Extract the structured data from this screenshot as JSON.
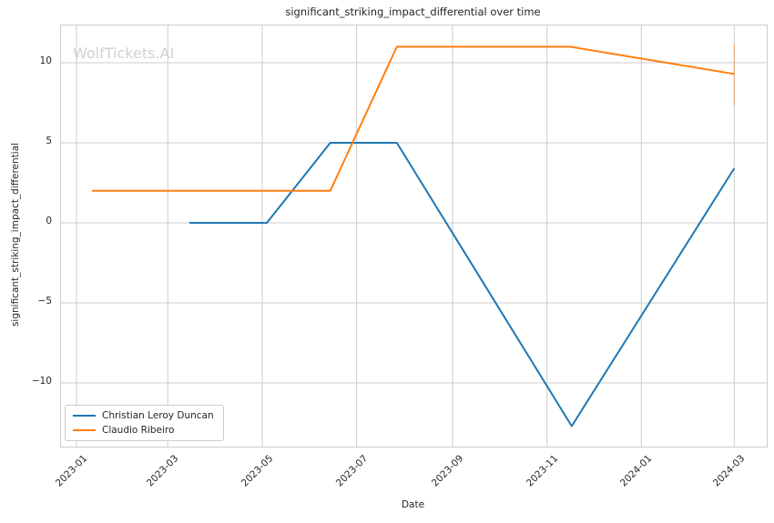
{
  "watermark": "WolfTickets.AI",
  "chart_data": {
    "type": "line",
    "title": "significant_striking_impact_differential over time",
    "xlabel": "Date",
    "ylabel": "significant_striking_impact_differential",
    "grid": true,
    "legend_position": "lower left",
    "x_axis": {
      "min_date": "2022-12-22",
      "max_date": "2024-03-22",
      "ticks": [
        {
          "label": "2023-01",
          "date": "2023-01-01"
        },
        {
          "label": "2023-03",
          "date": "2023-03-01"
        },
        {
          "label": "2023-05",
          "date": "2023-05-01"
        },
        {
          "label": "2023-07",
          "date": "2023-07-01"
        },
        {
          "label": "2023-09",
          "date": "2023-09-01"
        },
        {
          "label": "2023-11",
          "date": "2023-11-01"
        },
        {
          "label": "2024-01",
          "date": "2024-01-01"
        },
        {
          "label": "2024-03",
          "date": "2024-03-01"
        }
      ]
    },
    "y_axis": {
      "min": -13.98,
      "max": 12.33,
      "ticks": [
        {
          "label": "10",
          "value": 10
        },
        {
          "label": "5",
          "value": 5
        },
        {
          "label": "0",
          "value": 0
        },
        {
          "label": "−5",
          "value": -5
        },
        {
          "label": "−10",
          "value": -10
        }
      ]
    },
    "series": [
      {
        "name": "Christian Leroy Duncan",
        "color": "#1f77b4",
        "points": [
          [
            "2023-03-15",
            0
          ],
          [
            "2023-05-04",
            0
          ],
          [
            "2023-06-14",
            5
          ],
          [
            "2023-07-27",
            5
          ],
          [
            "2023-11-17",
            -12.7
          ],
          [
            "2024-03-01",
            3.4
          ]
        ]
      },
      {
        "name": "Claudio Ribeiro",
        "color": "#ff7f0e",
        "points": [
          [
            "2023-01-11",
            2
          ],
          [
            "2023-06-14",
            2
          ],
          [
            "2023-07-27",
            11
          ],
          [
            "2023-11-16",
            11
          ],
          [
            "2024-03-01",
            9.3
          ]
        ]
      }
    ],
    "end_marker": {
      "series": "Claudio Ribeiro",
      "date": "2024-03-01",
      "y_from": 7.3,
      "y_to": 11.2,
      "color": "#ff7f0e",
      "opacity": 0.45
    },
    "colors": {
      "grid": "#cccccc",
      "axis_border": "#cccccc",
      "text": "#262626",
      "watermark": "#d0d0d0",
      "background": "#ffffff"
    }
  }
}
